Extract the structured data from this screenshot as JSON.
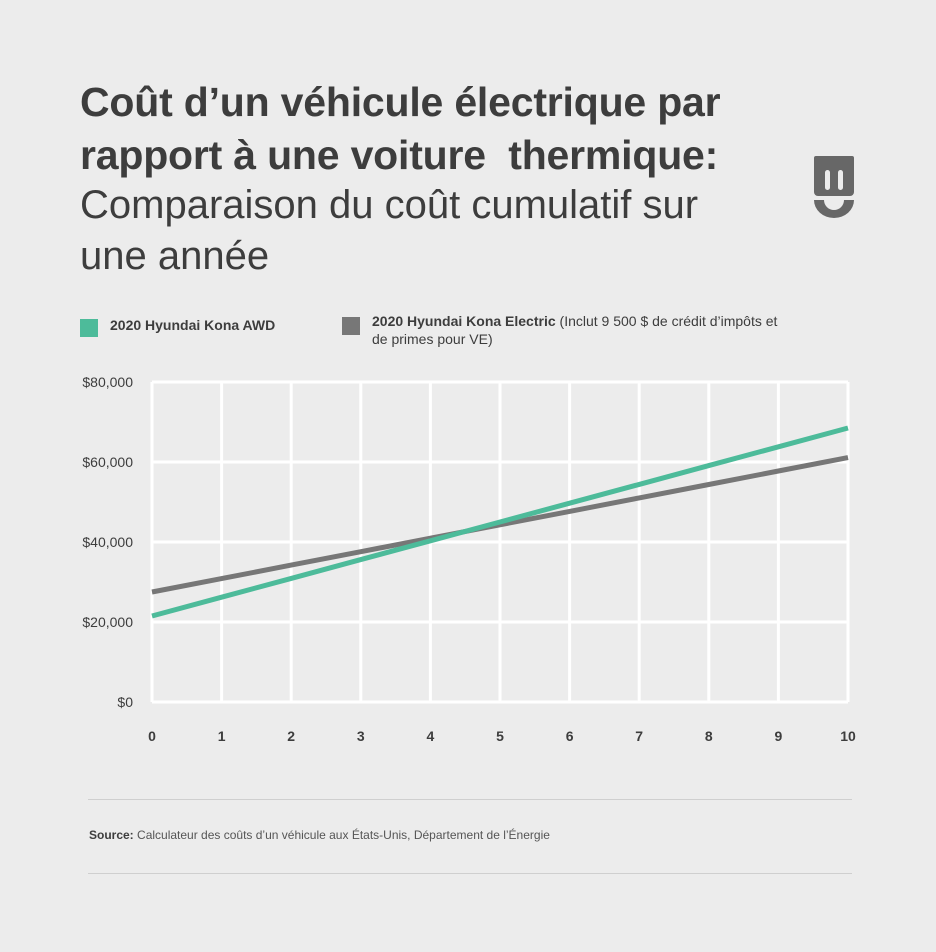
{
  "title": {
    "line1": "Coût d’un véhicule électrique par",
    "line2": "rapport à une voiture  thermique:",
    "subtitle_line1": "Comparaison du coût cumulatif sur",
    "subtitle_line2": "une année"
  },
  "legend": [
    {
      "label": "2020 Hyundai Kona AWD",
      "detail": "",
      "color": "#4dbb9a"
    },
    {
      "label": "2020 Hyundai Kona Electric",
      "detail": " (Inclut 9 500 $ de crédit d’impôts et de primes pour VE)",
      "color": "#777777"
    }
  ],
  "source": {
    "label": "Source:",
    "text": " Calculateur des coûts d’un véhicule aux États-Unis, Département de l’Énergie"
  },
  "icons": {
    "logo": "plug-face-logo-icon"
  },
  "chart_data": {
    "type": "line",
    "title": "",
    "xlabel": "",
    "ylabel": "",
    "x": [
      0,
      1,
      2,
      3,
      4,
      5,
      6,
      7,
      8,
      9,
      10
    ],
    "x_tick_labels": [
      "0",
      "1",
      "2",
      "3",
      "4",
      "5",
      "6",
      "7",
      "8",
      "9",
      "10"
    ],
    "y_tick_values": [
      0,
      20000,
      40000,
      60000,
      80000
    ],
    "y_tick_labels": [
      "$0",
      "$20,000",
      "$40,000",
      "$60,000",
      "$80,000"
    ],
    "xlim": [
      0,
      10
    ],
    "ylim": [
      0,
      80000
    ],
    "grid": true,
    "legend_position": "top",
    "series": [
      {
        "name": "2020 Hyundai Kona AWD",
        "color": "#4dbb9a",
        "values": [
          21500,
          26200,
          30900,
          35600,
          40300,
          45000,
          49700,
          54400,
          59100,
          63800,
          68500
        ]
      },
      {
        "name": "2020 Hyundai Kona Electric",
        "color": "#777777",
        "values": [
          27500,
          30860,
          34220,
          37580,
          40940,
          44300,
          47660,
          51020,
          54380,
          57740,
          61100
        ]
      }
    ]
  }
}
